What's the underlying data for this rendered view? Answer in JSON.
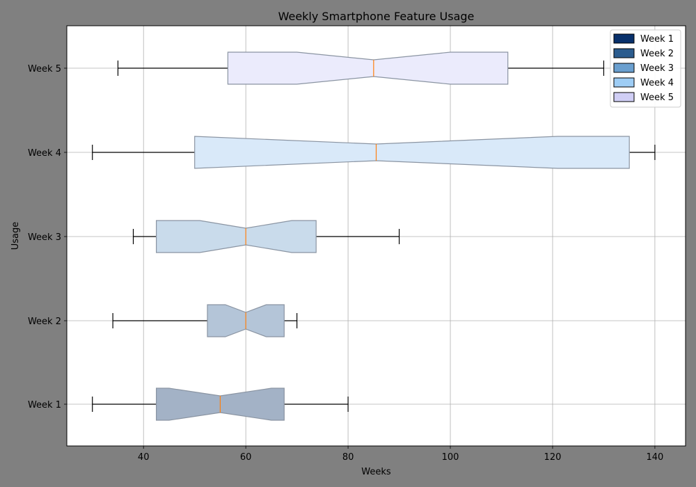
{
  "chart_data": {
    "type": "box",
    "orientation": "horizontal",
    "notched": true,
    "title": "Weekly Smartphone Feature Usage",
    "xlabel": "Weeks",
    "ylabel": "Usage",
    "xlim": [
      25,
      146
    ],
    "xticks": [
      40,
      60,
      80,
      100,
      120,
      140
    ],
    "grid": true,
    "legend_position": "top-right",
    "series": [
      {
        "name": "Week 1",
        "whisker_low": 30,
        "q1": 42.5,
        "median": 55,
        "q3": 67.5,
        "whisker_high": 80,
        "notch_low": 45,
        "notch_high": 65,
        "color": "#a3b2c6"
      },
      {
        "name": "Week 2",
        "whisker_low": 34,
        "q1": 52.5,
        "median": 60,
        "q3": 67.5,
        "whisker_high": 70,
        "notch_low": 56,
        "notch_high": 64,
        "color": "#b4c5d8"
      },
      {
        "name": "Week 3",
        "whisker_low": 38,
        "q1": 42.5,
        "median": 60,
        "q3": 73.75,
        "whisker_high": 90,
        "notch_low": 51,
        "notch_high": 69,
        "color": "#c9dbeb"
      },
      {
        "name": "Week 4",
        "whisker_low": 30,
        "q1": 50,
        "median": 85.5,
        "q3": 135,
        "whisker_high": 140,
        "notch_low": 50,
        "notch_high": 121,
        "color": "#d9e9f9"
      },
      {
        "name": "Week 5",
        "whisker_low": 35,
        "q1": 56.5,
        "median": 85,
        "q3": 111.25,
        "whisker_high": 130,
        "notch_low": 70,
        "notch_high": 100,
        "color": "#ebebfc"
      }
    ],
    "legend": [
      {
        "label": "Week 1",
        "color": "#08306b"
      },
      {
        "label": "Week 2",
        "color": "#2b5c8e"
      },
      {
        "label": "Week 3",
        "color": "#6a9fcf"
      },
      {
        "label": "Week 4",
        "color": "#9ecdf5"
      },
      {
        "label": "Week 5",
        "color": "#d0cef5"
      }
    ],
    "colors": {
      "figure_background": "#808080",
      "plot_background": "#ffffff",
      "median_line": "#ff7f0e",
      "box_edge": "#8a94a2"
    }
  }
}
